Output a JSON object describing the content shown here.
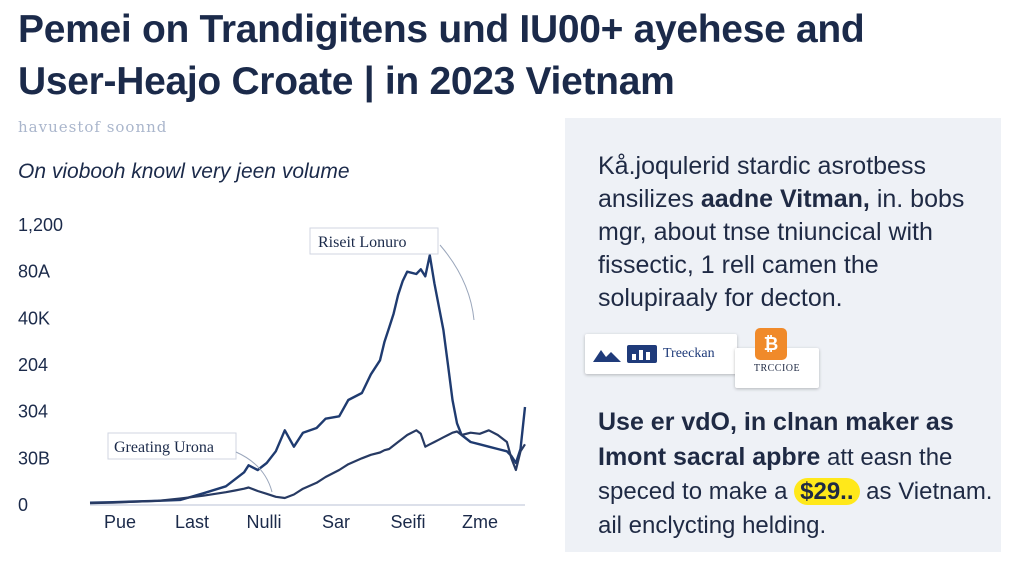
{
  "title": {
    "line1": "Pemei on Trandigitens und IU00+ ayehese and",
    "line2": "User-Heajo Croate | in 2023 Vietnam"
  },
  "subtitle": "havuestof soonnd",
  "chart_heading": "On viobooh knowl very jeen volume",
  "chart_data": {
    "type": "line",
    "title": "On viobooh knowl very jeen volume",
    "yticks": [
      "1,200",
      "80A",
      "40K",
      "204",
      "304",
      "30B",
      "0"
    ],
    "xticks": [
      "Pue",
      "Last",
      "Nulli",
      "Sar",
      "Seifi",
      "Zme"
    ],
    "x": [
      0,
      5,
      10,
      15,
      20,
      25,
      30,
      32,
      34,
      35,
      37,
      39,
      41,
      43,
      45,
      47,
      50,
      52,
      55,
      57,
      60,
      62,
      64,
      65,
      66,
      67,
      68,
      69,
      70,
      72,
      73,
      74,
      75,
      76,
      77,
      78,
      79,
      80,
      81,
      82,
      84,
      86,
      88,
      90,
      92,
      93,
      94,
      95,
      96
    ],
    "ylim": [
      0,
      1200
    ],
    "series": [
      {
        "values": [
          10,
          12,
          15,
          18,
          22,
          50,
          80,
          110,
          140,
          170,
          150,
          180,
          230,
          320,
          250,
          310,
          330,
          370,
          380,
          450,
          480,
          560,
          620,
          700,
          760,
          820,
          900,
          960,
          1000,
          990,
          1010,
          980,
          1070,
          950,
          850,
          750,
          600,
          450,
          350,
          300,
          270,
          260,
          250,
          240,
          230,
          210,
          180,
          240,
          420
        ]
      },
      {
        "values": [
          8,
          10,
          14,
          18,
          28,
          40,
          55,
          62,
          70,
          75,
          60,
          48,
          35,
          30,
          45,
          70,
          95,
          120,
          150,
          175,
          200,
          215,
          225,
          235,
          240,
          255,
          270,
          285,
          300,
          320,
          305,
          250,
          260,
          270,
          280,
          290,
          300,
          310,
          315,
          300,
          310,
          305,
          320,
          300,
          270,
          200,
          150,
          230,
          260
        ]
      }
    ],
    "annotations": [
      "Riseit Lonuro",
      "Greating Urona"
    ],
    "grid": false
  },
  "panel": {
    "top_text": {
      "part1": "Kå.joqulerid stardic asrotbess ansilizes ",
      "bold": "aadne Vitman,",
      "part2": " in. bobs mgr, about tnse tniuncical with fissectic, 1 rell camen the solupiraaly for decton."
    },
    "badges": {
      "left_label": "Treeckan",
      "right_label": "TRCCIOE",
      "btc_symbol": "₿"
    },
    "bottom_text": {
      "bold_line1": "Use er vdO, in clnan maker as",
      "bold_line2": "Imont sacral apbre",
      "after_bold": " att easn the speced to make a ",
      "highlight": "$29..",
      "rest": " as Vietnam. ail enclycting helding."
    }
  },
  "colors": {
    "title": "#1b2a4a",
    "series1": "#1f3b70",
    "series2": "#273a63",
    "panel_bg": "#eef1f6",
    "highlight": "#ffe81a",
    "btc": "#f08a2a"
  }
}
